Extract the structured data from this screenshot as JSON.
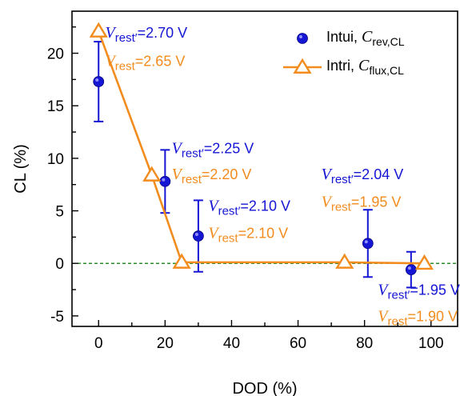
{
  "chart_data": {
    "type": "scatter",
    "xlabel": "DOD (%)",
    "ylabel": "CL (%)",
    "xlim": [
      -8,
      108
    ],
    "ylim": [
      -6,
      24
    ],
    "xticks": [
      0,
      20,
      40,
      60,
      80,
      100
    ],
    "yticks": [
      -5,
      0,
      5,
      10,
      15,
      20
    ],
    "reference_line": {
      "y": 0,
      "color": "#2e8b2e",
      "style": "dashed"
    },
    "legend_position": "top-right",
    "series": [
      {
        "name": "Intui, C_rev,CL",
        "name_base": "Intui, ",
        "name_var": "C",
        "name_sub": "rev,CL",
        "color": "#1515d4",
        "marker": "circle",
        "points": [
          {
            "x": 0,
            "y": 17.3,
            "err": 3.8
          },
          {
            "x": 20,
            "y": 7.8,
            "err": 3.0
          },
          {
            "x": 30,
            "y": 2.6,
            "err": 3.4
          },
          {
            "x": 81,
            "y": 1.9,
            "err": 3.2
          },
          {
            "x": 94,
            "y": -0.6,
            "err": 1.7
          }
        ]
      },
      {
        "name": "Intri, C_flux,CL",
        "name_base": "Intri, ",
        "name_var": "C",
        "name_sub": "flux,CL",
        "color": "#f28c1e",
        "marker": "triangle",
        "line": true,
        "points": [
          {
            "x": 0,
            "y": 22.1
          },
          {
            "x": 16,
            "y": 8.4
          },
          {
            "x": 25,
            "y": 0.1
          },
          {
            "x": 74,
            "y": 0.1
          },
          {
            "x": 98,
            "y": 0.0
          }
        ]
      }
    ],
    "annotations": [
      {
        "pos": [
          2,
          21.5
        ],
        "color": "#1515d4",
        "var": "V",
        "sub": "rest′",
        "text": "=2.70 V"
      },
      {
        "pos": [
          2,
          18.8
        ],
        "color": "#f28c1e",
        "var": "V",
        "sub": "rest",
        "text": "=2.65 V"
      },
      {
        "pos": [
          22,
          10.5
        ],
        "color": "#1515d4",
        "var": "V",
        "sub": "rest′",
        "text": "=2.25 V"
      },
      {
        "pos": [
          22,
          8.0
        ],
        "color": "#f28c1e",
        "var": "V",
        "sub": "rest",
        "text": "=2.20 V"
      },
      {
        "pos": [
          33,
          5.0
        ],
        "color": "#1515d4",
        "var": "V",
        "sub": "rest′",
        "text": "=2.10 V"
      },
      {
        "pos": [
          33,
          2.4
        ],
        "color": "#f28c1e",
        "var": "V",
        "sub": "rest",
        "text": "=2.10 V"
      },
      {
        "pos": [
          67,
          8.0
        ],
        "color": "#1515d4",
        "var": "V",
        "sub": "rest′",
        "text": "=2.04 V"
      },
      {
        "pos": [
          67,
          5.4
        ],
        "color": "#f28c1e",
        "var": "V",
        "sub": "rest",
        "text": "=1.95 V"
      },
      {
        "pos": [
          84,
          -3.0
        ],
        "color": "#1515d4",
        "var": "V",
        "sub": "rest′",
        "text": "=1.95 V"
      },
      {
        "pos": [
          84,
          -5.5
        ],
        "color": "#f28c1e",
        "var": "V",
        "sub": "rest",
        "text": "=1.90 V"
      }
    ]
  }
}
